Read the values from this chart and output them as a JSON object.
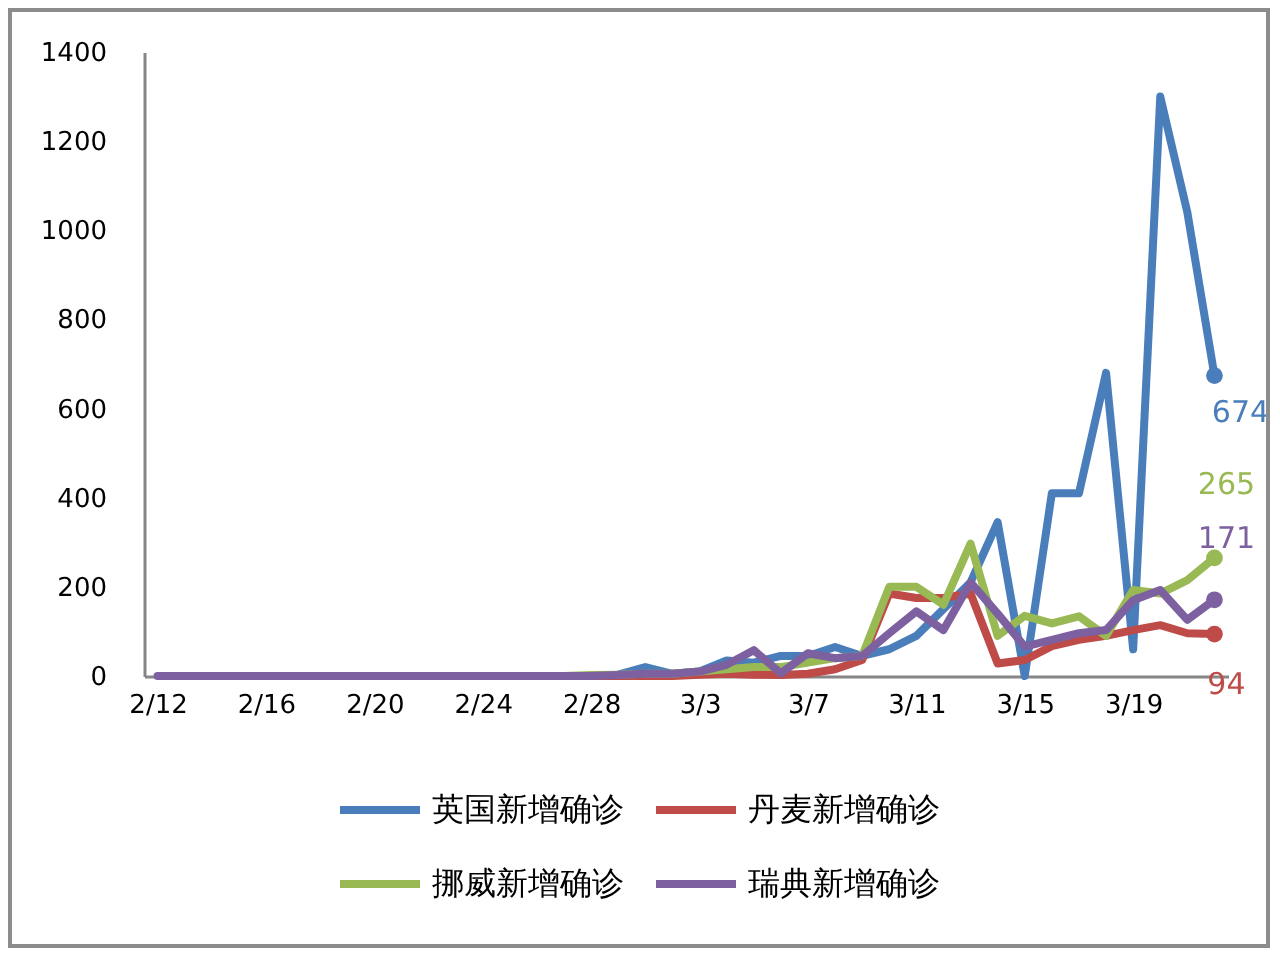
{
  "chart_data": {
    "type": "line",
    "categories": [
      "2/12",
      null,
      null,
      null,
      "2/16",
      null,
      null,
      null,
      "2/20",
      null,
      null,
      null,
      "2/24",
      null,
      null,
      null,
      "2/28",
      null,
      null,
      null,
      "3/3",
      null,
      null,
      null,
      "3/7",
      null,
      null,
      null,
      "3/11",
      null,
      null,
      null,
      "3/15",
      null,
      null,
      null,
      "3/19",
      null,
      null,
      null
    ],
    "series": [
      {
        "name": "英国新增确诊",
        "color": "#4a7ebb",
        "values": [
          null,
          null,
          null,
          null,
          null,
          null,
          null,
          null,
          null,
          null,
          null,
          null,
          null,
          null,
          null,
          null,
          2,
          3,
          20,
          5,
          10,
          35,
          30,
          45,
          45,
          65,
          45,
          60,
          90,
          150,
          210,
          345,
          0,
          410,
          410,
          680,
          60,
          1300,
          1040,
          674
        ],
        "value_labels": [
          null,
          null,
          null,
          null,
          null,
          null,
          null,
          null,
          null,
          null,
          null,
          null,
          null,
          null,
          null,
          null,
          null,
          null,
          null,
          null,
          null,
          null,
          null,
          null,
          null,
          null,
          null,
          null,
          null,
          null,
          null,
          null,
          null,
          null,
          null,
          null,
          null,
          null,
          null,
          "674"
        ]
      },
      {
        "name": "丹麦新增确诊",
        "color": "#be4b48",
        "values": [
          null,
          null,
          null,
          null,
          null,
          null,
          null,
          null,
          null,
          null,
          null,
          null,
          null,
          null,
          null,
          0,
          0,
          0,
          0,
          0,
          3,
          5,
          3,
          2,
          5,
          15,
          36,
          185,
          175,
          175,
          185,
          28,
          36,
          67,
          81,
          90,
          103,
          114,
          96,
          94
        ],
        "value_labels": [
          null,
          null,
          null,
          null,
          null,
          null,
          null,
          null,
          null,
          null,
          null,
          null,
          null,
          null,
          null,
          null,
          null,
          null,
          null,
          null,
          null,
          null,
          null,
          null,
          null,
          null,
          null,
          null,
          null,
          null,
          null,
          null,
          null,
          null,
          null,
          null,
          null,
          null,
          null,
          "94"
        ]
      },
      {
        "name": "挪威新增确诊",
        "color": "#98b954",
        "values": [
          null,
          null,
          null,
          null,
          null,
          null,
          null,
          null,
          null,
          null,
          null,
          null,
          null,
          null,
          null,
          0,
          2,
          3,
          5,
          5,
          10,
          15,
          20,
          20,
          30,
          40,
          45,
          200,
          200,
          160,
          297,
          90,
          135,
          118,
          134,
          90,
          193,
          185,
          215,
          265
        ],
        "value_labels": [
          null,
          null,
          null,
          null,
          null,
          null,
          null,
          null,
          null,
          null,
          null,
          null,
          null,
          null,
          null,
          null,
          null,
          null,
          null,
          null,
          null,
          null,
          null,
          null,
          null,
          null,
          null,
          null,
          null,
          null,
          null,
          null,
          null,
          null,
          null,
          null,
          null,
          null,
          null,
          "265"
        ]
      },
      {
        "name": "瑞典新增确诊",
        "color": "#7d60a0",
        "values": [
          0,
          0,
          0,
          0,
          0,
          0,
          0,
          0,
          0,
          0,
          0,
          0,
          0,
          0,
          0,
          0,
          0,
          2,
          5,
          5,
          10,
          25,
          58,
          6,
          51,
          40,
          45,
          96,
          145,
          103,
          210,
          140,
          66,
          81,
          96,
          103,
          170,
          193,
          126,
          171
        ],
        "value_labels": [
          null,
          null,
          null,
          null,
          null,
          null,
          null,
          null,
          null,
          null,
          null,
          null,
          null,
          null,
          null,
          null,
          null,
          null,
          null,
          null,
          null,
          null,
          null,
          null,
          null,
          null,
          null,
          null,
          null,
          null,
          null,
          null,
          null,
          null,
          null,
          null,
          null,
          null,
          null,
          "171"
        ]
      }
    ],
    "ylim": [
      0,
      1400
    ],
    "yticks": [
      0,
      200,
      400,
      600,
      800,
      1000,
      1200,
      1400
    ],
    "grid": false,
    "legend": "bottom"
  }
}
